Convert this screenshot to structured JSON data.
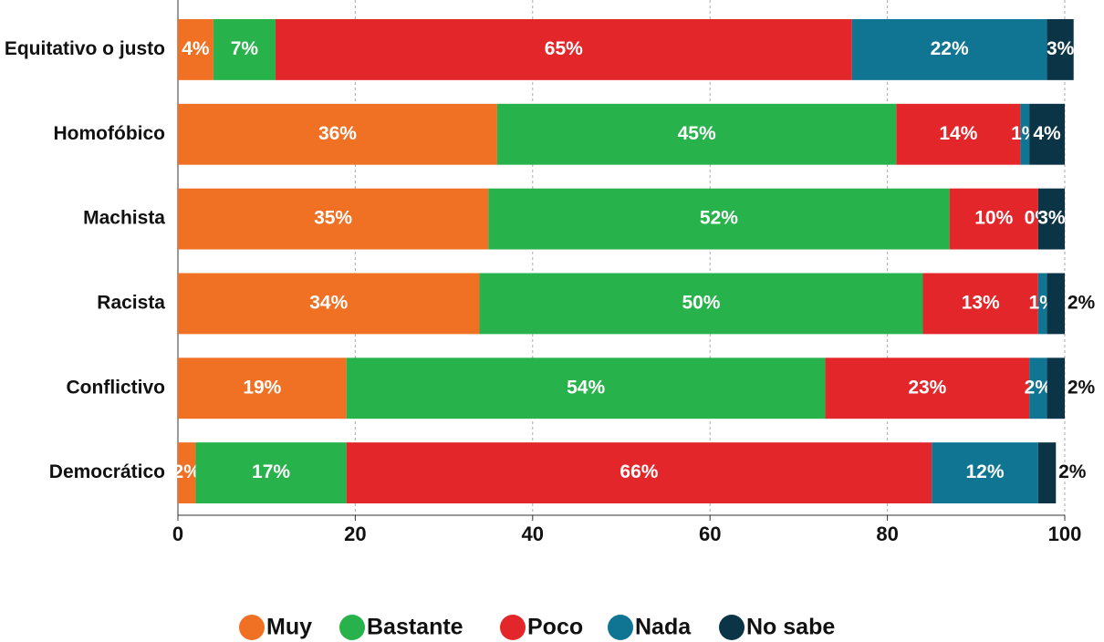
{
  "chart_data": {
    "type": "bar",
    "orientation": "horizontal",
    "stacked": true,
    "categories": [
      "Equitativo o justo",
      "Homofóbico",
      "Machista",
      "Racista",
      "Conflictivo",
      "Democrático"
    ],
    "series": [
      {
        "name": "Muy",
        "color": "#f07124",
        "values": [
          4,
          36,
          35,
          34,
          19,
          2
        ],
        "value_labels": [
          "4%",
          "36%",
          "35%",
          "34%",
          "19%",
          "2%"
        ]
      },
      {
        "name": "Bastante",
        "color": "#27b24b",
        "values": [
          7,
          45,
          52,
          50,
          54,
          17
        ],
        "value_labels": [
          "7%",
          "45%",
          "52%",
          "50%",
          "54%",
          "17%"
        ]
      },
      {
        "name": "Poco",
        "color": "#e3262a",
        "values": [
          65,
          14,
          10,
          13,
          23,
          66
        ],
        "value_labels": [
          "65%",
          "14%",
          "10%",
          "13%",
          "23%",
          "66%"
        ]
      },
      {
        "name": "Nada",
        "color": "#0f7592",
        "values": [
          22,
          1,
          0,
          1,
          2,
          12
        ],
        "value_labels": [
          "22%",
          "1%",
          "0%",
          "1%",
          "2%",
          "12%"
        ]
      },
      {
        "name": "No sabe",
        "color": "#0b3547",
        "values": [
          3,
          4,
          3,
          2,
          2,
          2
        ],
        "value_labels": [
          "3%",
          "4%",
          "3%",
          "2%",
          "2%",
          "2%"
        ]
      }
    ],
    "xlim": [
      0,
      100
    ],
    "xticks": [
      0,
      20,
      40,
      60,
      80,
      100
    ],
    "grid": true,
    "legend": "bottom"
  }
}
